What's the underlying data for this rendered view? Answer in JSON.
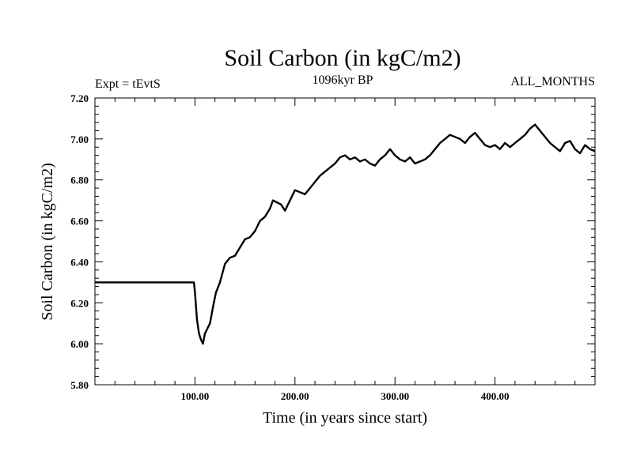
{
  "chart_data": {
    "type": "line",
    "title": "Soil Carbon (in kgC/m2)",
    "subtitle_left": "Expt = tEvtS",
    "subtitle_center": "1096kyr BP",
    "subtitle_right": "ALL_MONTHS",
    "xlabel": "Time (in years since start)",
    "ylabel": "Soil Carbon (in kgC/m2)",
    "xlim": [
      0,
      500
    ],
    "ylim": [
      5.8,
      7.2
    ],
    "xticks": [
      100,
      200,
      300,
      400
    ],
    "xtick_labels": [
      "100.00",
      "200.00",
      "300.00",
      "400.00"
    ],
    "yticks": [
      5.8,
      6.0,
      6.2,
      6.4,
      6.6,
      6.8,
      7.0,
      7.2
    ],
    "ytick_labels": [
      "5.80",
      "6.00",
      "6.20",
      "6.40",
      "6.60",
      "6.80",
      "7.00",
      "7.20"
    ],
    "series": [
      {
        "name": "Soil Carbon",
        "x": [
          0,
          99,
          100,
          102,
          104,
          106,
          108,
          110,
          112,
          115,
          118,
          121,
          125,
          130,
          135,
          140,
          145,
          150,
          155,
          160,
          165,
          170,
          175,
          178,
          182,
          186,
          190,
          195,
          200,
          205,
          210,
          215,
          220,
          225,
          230,
          235,
          240,
          245,
          250,
          255,
          260,
          265,
          270,
          275,
          280,
          285,
          290,
          295,
          300,
          305,
          310,
          315,
          320,
          325,
          330,
          335,
          340,
          345,
          350,
          355,
          360,
          365,
          370,
          375,
          380,
          385,
          390,
          395,
          400,
          405,
          410,
          415,
          420,
          425,
          430,
          435,
          440,
          445,
          450,
          455,
          460,
          465,
          470,
          475,
          480,
          485,
          490,
          495,
          500
        ],
        "values": [
          6.3,
          6.3,
          6.25,
          6.12,
          6.05,
          6.02,
          6.0,
          6.05,
          6.07,
          6.1,
          6.18,
          6.25,
          6.3,
          6.39,
          6.42,
          6.43,
          6.47,
          6.51,
          6.52,
          6.55,
          6.6,
          6.62,
          6.66,
          6.7,
          6.69,
          6.68,
          6.65,
          6.7,
          6.75,
          6.74,
          6.73,
          6.76,
          6.79,
          6.82,
          6.84,
          6.86,
          6.88,
          6.91,
          6.92,
          6.9,
          6.91,
          6.89,
          6.9,
          6.88,
          6.87,
          6.9,
          6.92,
          6.95,
          6.92,
          6.9,
          6.89,
          6.91,
          6.88,
          6.89,
          6.9,
          6.92,
          6.95,
          6.98,
          7.0,
          7.02,
          7.01,
          7.0,
          6.98,
          7.01,
          7.03,
          7.0,
          6.97,
          6.96,
          6.97,
          6.95,
          6.98,
          6.96,
          6.98,
          7.0,
          7.02,
          7.05,
          7.07,
          7.04,
          7.01,
          6.98,
          6.96,
          6.94,
          6.98,
          6.99,
          6.95,
          6.93,
          6.97,
          6.95,
          6.94
        ]
      }
    ]
  }
}
